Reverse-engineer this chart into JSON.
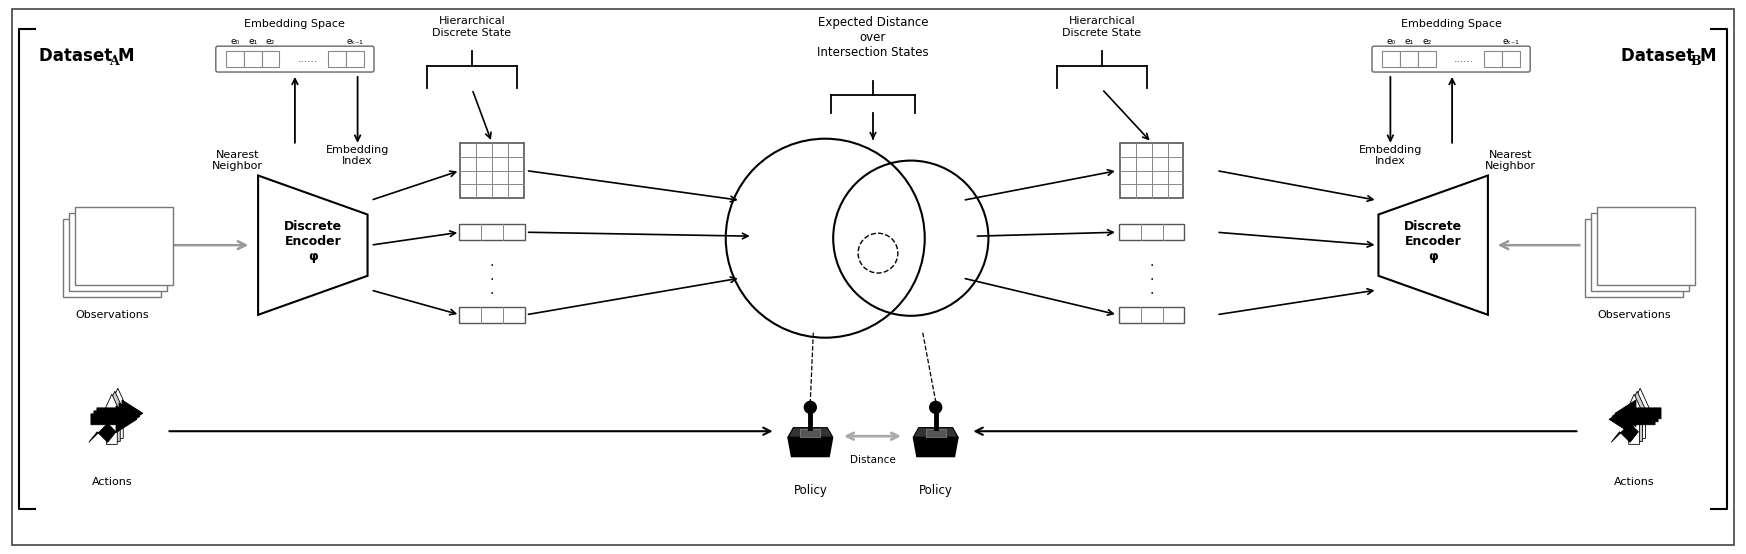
{
  "fig_width": 17.46,
  "fig_height": 5.54,
  "bg_color": "#ffffff",
  "dataset_A_label": "Dataset M",
  "dataset_A_sub": "A",
  "dataset_B_label": "Dataset M",
  "dataset_B_sub": "B",
  "obs_label": "Observations",
  "actions_label": "Actions",
  "nearest_neighbor_label": "Nearest\nNeighbor",
  "embedding_index_label": "Embedding\nIndex",
  "discrete_encoder_label": "Discrete\nEncoder\nϕ",
  "embedding_space_label": "Embedding Space",
  "hierarchical_label": "Hierarchical\nDiscrete State",
  "expected_distance_label": "Expected Distance\nover\nIntersection States",
  "policy_label": "Policy",
  "distance_label": "Distance",
  "e0": "e₀",
  "e1": "e₁",
  "e2": "e₂",
  "ek": "eₖ₋₁"
}
